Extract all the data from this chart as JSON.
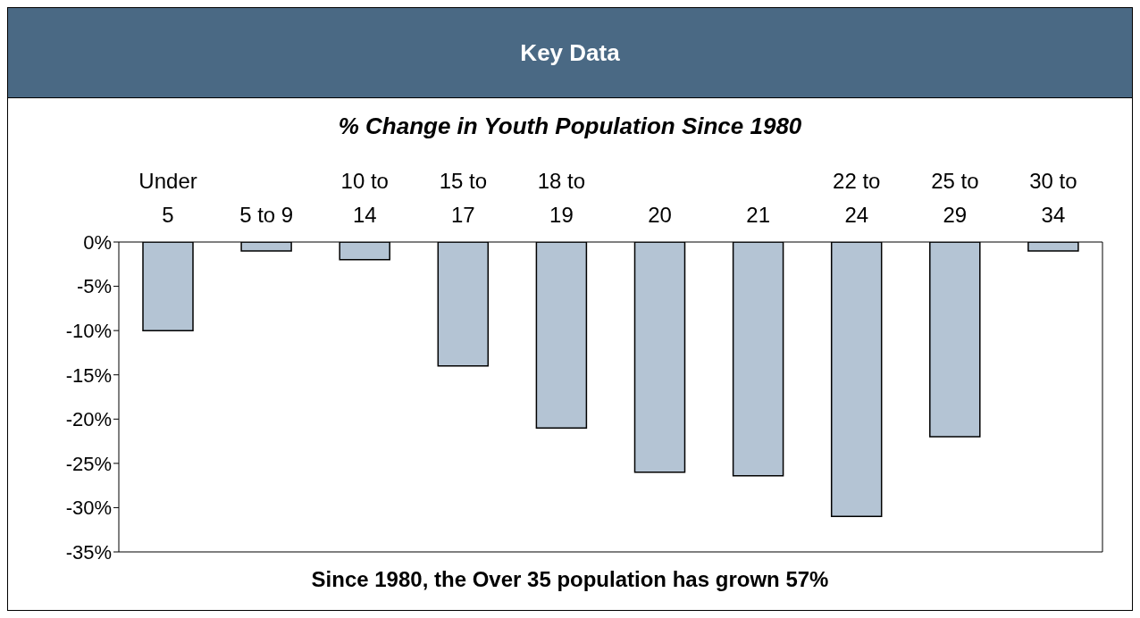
{
  "chart_data": {
    "type": "bar",
    "title": "Key Data",
    "subtitle": "% Change in Youth Population Since 1980",
    "categories": [
      "Under 5",
      "5 to 9",
      "10 to 14",
      "15 to 17",
      "18 to 19",
      "20",
      "21",
      "22 to 24",
      "25 to 29",
      "30 to 34"
    ],
    "values": [
      -10,
      -1,
      -2,
      -14,
      -21,
      -26,
      -26.4,
      -31,
      -22,
      -1
    ],
    "color": "#b4c4d4",
    "ylim": [
      -35,
      0
    ],
    "yticks": [
      {
        "value": 0,
        "label": "0%"
      },
      {
        "value": -5,
        "label": "-5%"
      },
      {
        "value": -10,
        "label": "-10%"
      },
      {
        "value": -15,
        "label": "-15%"
      },
      {
        "value": -20,
        "label": "-20%"
      },
      {
        "value": -25,
        "label": "-25%"
      },
      {
        "value": -30,
        "label": "-30%"
      },
      {
        "value": -35,
        "label": "-35%"
      }
    ],
    "annotations": [
      "Since 1980, the Over 35 population has grown 57%"
    ]
  }
}
